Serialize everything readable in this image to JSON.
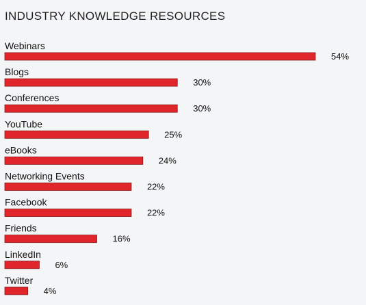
{
  "chart_data": {
    "type": "bar",
    "orientation": "horizontal",
    "title": "INDUSTRY KNOWLEDGE RESOURCES",
    "categories": [
      "Webinars",
      "Blogs",
      "Conferences",
      "YouTube",
      "eBooks",
      "Networking Events",
      "Facebook",
      "Friends",
      "LinkedIn",
      "Twitter"
    ],
    "values": [
      54,
      30,
      30,
      25,
      24,
      22,
      22,
      16,
      6,
      4
    ],
    "value_labels": [
      "54%",
      "30%",
      "30%",
      "25%",
      "24%",
      "22%",
      "22%",
      "16%",
      "6%",
      "4%"
    ],
    "xlim": [
      0,
      54
    ],
    "grid": false,
    "colors": {
      "bar_fill": "#e0262b",
      "bar_stroke": "#8a1414",
      "background": "#f4f5f7"
    }
  }
}
